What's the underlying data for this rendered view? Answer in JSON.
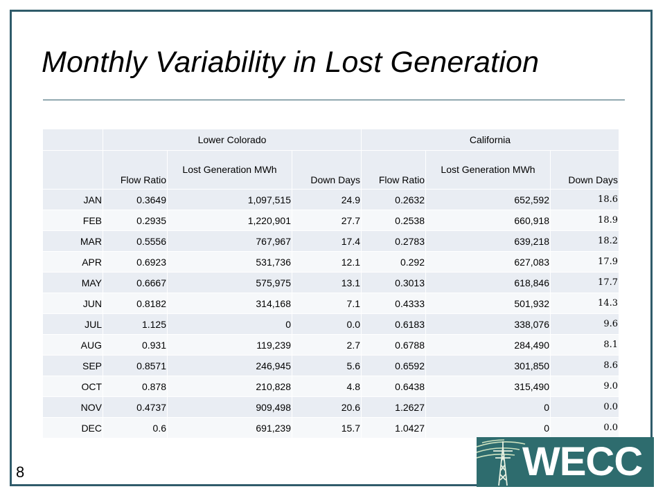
{
  "slide": {
    "title": "Monthly Variability in Lost Generation",
    "page_number": "8"
  },
  "logo": {
    "text": "WECC",
    "icon": "transmission-tower-icon",
    "bg_color": "#2e6c6e"
  },
  "accent_color": "#2f5b6a",
  "table": {
    "regions": [
      "Lower Colorado",
      "California"
    ],
    "columns": [
      "Flow Ratio",
      "Lost Generation MWh",
      "Down Days",
      "Flow Ratio",
      "Lost Generation MWh",
      "Down Days"
    ],
    "rows": [
      {
        "month": "JAN",
        "lc_flow": "0.3649",
        "lc_lost": "1,097,515",
        "lc_down": "24.9",
        "ca_flow": "0.2632",
        "ca_lost": "652,592",
        "ca_down": "18.6"
      },
      {
        "month": "FEB",
        "lc_flow": "0.2935",
        "lc_lost": "1,220,901",
        "lc_down": "27.7",
        "ca_flow": "0.2538",
        "ca_lost": "660,918",
        "ca_down": "18.9"
      },
      {
        "month": "MAR",
        "lc_flow": "0.5556",
        "lc_lost": "767,967",
        "lc_down": "17.4",
        "ca_flow": "0.2783",
        "ca_lost": "639,218",
        "ca_down": "18.2"
      },
      {
        "month": "APR",
        "lc_flow": "0.6923",
        "lc_lost": "531,736",
        "lc_down": "12.1",
        "ca_flow": "0.292",
        "ca_lost": "627,083",
        "ca_down": "17.9"
      },
      {
        "month": "MAY",
        "lc_flow": "0.6667",
        "lc_lost": "575,975",
        "lc_down": "13.1",
        "ca_flow": "0.3013",
        "ca_lost": "618,846",
        "ca_down": "17.7"
      },
      {
        "month": "JUN",
        "lc_flow": "0.8182",
        "lc_lost": "314,168",
        "lc_down": "7.1",
        "ca_flow": "0.4333",
        "ca_lost": "501,932",
        "ca_down": "14.3"
      },
      {
        "month": "JUL",
        "lc_flow": "1.125",
        "lc_lost": "0",
        "lc_down": "0.0",
        "ca_flow": "0.6183",
        "ca_lost": "338,076",
        "ca_down": "9.6"
      },
      {
        "month": "AUG",
        "lc_flow": "0.931",
        "lc_lost": "119,239",
        "lc_down": "2.7",
        "ca_flow": "0.6788",
        "ca_lost": "284,490",
        "ca_down": "8.1"
      },
      {
        "month": "SEP",
        "lc_flow": "0.8571",
        "lc_lost": "246,945",
        "lc_down": "5.6",
        "ca_flow": "0.6592",
        "ca_lost": "301,850",
        "ca_down": "8.6"
      },
      {
        "month": "OCT",
        "lc_flow": "0.878",
        "lc_lost": "210,828",
        "lc_down": "4.8",
        "ca_flow": "0.6438",
        "ca_lost": "315,490",
        "ca_down": "9.0"
      },
      {
        "month": "NOV",
        "lc_flow": "0.4737",
        "lc_lost": "909,498",
        "lc_down": "20.6",
        "ca_flow": "1.2627",
        "ca_lost": "0",
        "ca_down": "0.0"
      },
      {
        "month": "DEC",
        "lc_flow": "0.6",
        "lc_lost": "691,239",
        "lc_down": "15.7",
        "ca_flow": "1.0427",
        "ca_lost": "0",
        "ca_down": "0.0"
      }
    ]
  }
}
